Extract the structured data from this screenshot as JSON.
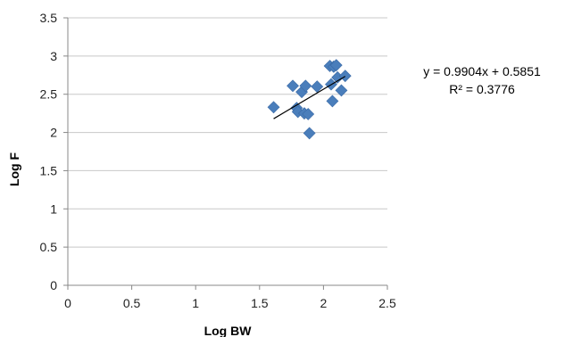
{
  "chart_data": {
    "type": "scatter",
    "xlabel": "Log BW",
    "ylabel": "Log F",
    "xlim": [
      0,
      2.5
    ],
    "ylim": [
      0,
      3.5
    ],
    "x_ticks": [
      "0",
      "0.5",
      "1",
      "1.5",
      "2",
      "2.5"
    ],
    "y_ticks": [
      "0",
      "0.5",
      "1",
      "1.5",
      "2",
      "2.5",
      "3",
      "3.5"
    ],
    "grid": "horizontal",
    "marker_color": "#4a7ebb",
    "trendline_color": "#000000",
    "points": [
      {
        "x": 1.61,
        "y": 2.33
      },
      {
        "x": 1.76,
        "y": 2.61
      },
      {
        "x": 1.79,
        "y": 2.32
      },
      {
        "x": 1.8,
        "y": 2.27
      },
      {
        "x": 1.83,
        "y": 2.53
      },
      {
        "x": 1.85,
        "y": 2.25
      },
      {
        "x": 1.86,
        "y": 2.61
      },
      {
        "x": 1.88,
        "y": 2.24
      },
      {
        "x": 1.89,
        "y": 1.99
      },
      {
        "x": 1.95,
        "y": 2.6
      },
      {
        "x": 2.05,
        "y": 2.87
      },
      {
        "x": 2.06,
        "y": 2.63
      },
      {
        "x": 2.07,
        "y": 2.41
      },
      {
        "x": 2.08,
        "y": 2.86
      },
      {
        "x": 2.1,
        "y": 2.88
      },
      {
        "x": 2.11,
        "y": 2.72
      },
      {
        "x": 2.14,
        "y": 2.55
      },
      {
        "x": 2.17,
        "y": 2.74
      }
    ],
    "trendline": {
      "slope": 0.9904,
      "intercept": 0.5851,
      "x_range": [
        1.61,
        2.17
      ],
      "equation": "y = 0.9904x + 0.5851",
      "r_squared": "R² = 0.3776"
    }
  }
}
